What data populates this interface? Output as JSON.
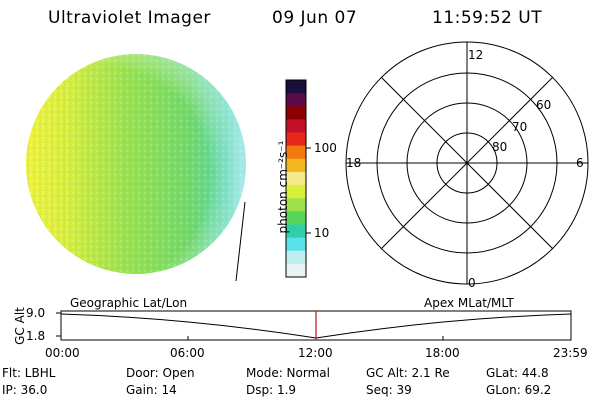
{
  "header": {
    "instrument": "Ultraviolet Imager",
    "date": "09 Jun 07",
    "time": "11:59:52 UT"
  },
  "colorbar": {
    "label": "photon cm⁻²s⁻¹",
    "ticks": [
      "100",
      "10"
    ],
    "colors": [
      "#1a0f3a",
      "#5a0a4a",
      "#8b0000",
      "#c2102a",
      "#e8261a",
      "#f07a10",
      "#f4b81e",
      "#f5e98a",
      "#d8f03a",
      "#9fe04a",
      "#58d65a",
      "#2fd0a8",
      "#5ae0e8",
      "#bfeeee",
      "#e8f4f4"
    ]
  },
  "polar": {
    "labels": {
      "top": "12",
      "left": "18",
      "right": "6",
      "bottom": "0"
    },
    "lat_labels": [
      "60",
      "70",
      "80"
    ]
  },
  "timeline": {
    "ylabel": "GC Alt",
    "yticks": [
      "9.0",
      "1.8"
    ],
    "left_label": "Geographic Lat/Lon",
    "right_label": "Apex MLat/MLT",
    "xticks": [
      "00:00",
      "06:00",
      "12:00",
      "18:00",
      "23:59"
    ],
    "marker_color": "#c0202a"
  },
  "info": {
    "flt": "Flt: LBHL",
    "ip": "IP: 36.0",
    "door": "Door: Open",
    "gain": "Gain: 14",
    "mode": "Mode: Normal",
    "dsp": "Dsp:    1.9",
    "gcalt": "GC Alt: 2.1 Re",
    "seq": "Seq: 39",
    "glat": "GLat:  44.8",
    "glon": "GLon:  69.2"
  }
}
